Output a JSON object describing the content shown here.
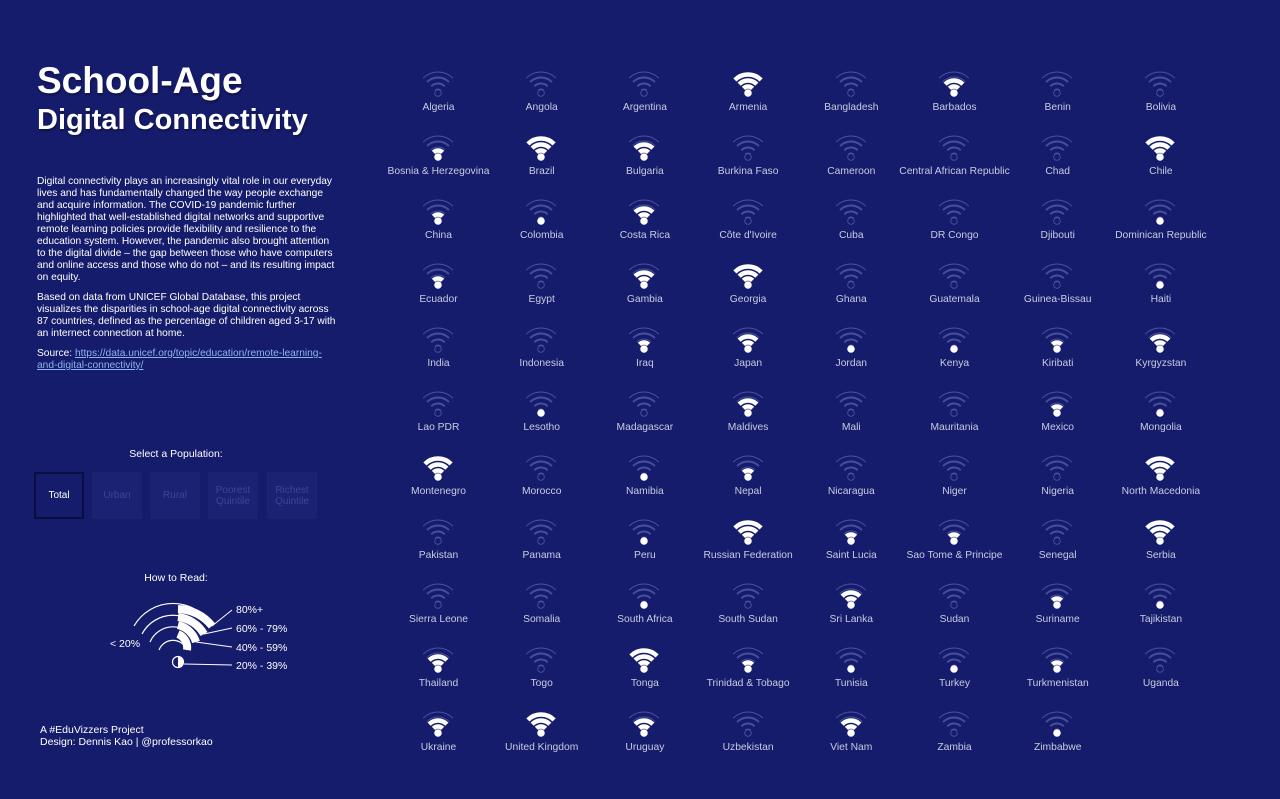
{
  "header": {
    "title_line1": "School-Age",
    "title_line2": "Digital Connectivity"
  },
  "intro": {
    "paragraph1": "Digital connectivity plays an increasingly vital role in our everyday lives and has fundamentally changed the way people exchange and acquire information. The COVID-19 pandemic further highlighted that well-established digital networks and supportive remote learning policies provide flexibility and resilience to the education system. However, the pandemic also brought attention to the digital divide – the gap between those who have computers and online access and those who do not – and its resulting impact on equity.",
    "paragraph2": "Based on data from UNICEF Global Database, this project visualizes the disparities in school-age digital connectivity across 87 countries, defined as the percentage of children aged 3-17 with an internect connection at home.",
    "source_label": "Source:",
    "source_link": "https://data.unicef.org/topic/education/remote-learning-and-digital-connectivity/"
  },
  "population": {
    "label": "Select a Population:",
    "options": [
      "Total",
      "Urban",
      "Rural",
      "Poorest Quintile",
      "Richest Quintile"
    ],
    "selected": "Total"
  },
  "how_to_read": {
    "label": "How to Read:",
    "levels": [
      "80%+",
      "60% - 79%",
      "40% - 59%",
      "20% - 39%"
    ],
    "below": "< 20%"
  },
  "credit": {
    "line1": "A #EduVizzers Project",
    "line2": "Design: Dennis Kao | @professorkao"
  },
  "colors": {
    "background": "#161c6c",
    "strong": "#ffffff",
    "faint": "#4a52a0"
  },
  "countries": [
    {
      "name": "Algeria",
      "level": 0
    },
    {
      "name": "Angola",
      "level": 0
    },
    {
      "name": "Argentina",
      "level": 0
    },
    {
      "name": "Armenia",
      "level": 4
    },
    {
      "name": "Bangladesh",
      "level": 0
    },
    {
      "name": "Barbados",
      "level": 3
    },
    {
      "name": "Benin",
      "level": 0
    },
    {
      "name": "Bolivia",
      "level": 0
    },
    {
      "name": "Bosnia & Herzegovina",
      "level": 2
    },
    {
      "name": "Brazil",
      "level": 4
    },
    {
      "name": "Bulgaria",
      "level": 3
    },
    {
      "name": "Burkina Faso",
      "level": 0
    },
    {
      "name": "Cameroon",
      "level": 0
    },
    {
      "name": "Central African Republic",
      "level": 0
    },
    {
      "name": "Chad",
      "level": 0
    },
    {
      "name": "Chile",
      "level": 4
    },
    {
      "name": "China",
      "level": 2
    },
    {
      "name": "Colombia",
      "level": 1
    },
    {
      "name": "Costa Rica",
      "level": 3
    },
    {
      "name": "Côte d'Ivoire",
      "level": 0
    },
    {
      "name": "Cuba",
      "level": 0
    },
    {
      "name": "DR Congo",
      "level": 0
    },
    {
      "name": "Djibouti",
      "level": 0
    },
    {
      "name": "Dominican Republic",
      "level": 1
    },
    {
      "name": "Ecuador",
      "level": 2
    },
    {
      "name": "Egypt",
      "level": 0
    },
    {
      "name": "Gambia",
      "level": 3
    },
    {
      "name": "Georgia",
      "level": 4
    },
    {
      "name": "Ghana",
      "level": 0
    },
    {
      "name": "Guatemala",
      "level": 0
    },
    {
      "name": "Guinea-Bissau",
      "level": 0
    },
    {
      "name": "Haiti",
      "level": 1
    },
    {
      "name": "India",
      "level": 0
    },
    {
      "name": "Indonesia",
      "level": 0
    },
    {
      "name": "Iraq",
      "level": 2
    },
    {
      "name": "Japan",
      "level": 3
    },
    {
      "name": "Jordan",
      "level": 1
    },
    {
      "name": "Kenya",
      "level": 1
    },
    {
      "name": "Kiribati",
      "level": 2
    },
    {
      "name": "Kyrgyzstan",
      "level": 3
    },
    {
      "name": "Lao PDR",
      "level": 0
    },
    {
      "name": "Lesotho",
      "level": 1
    },
    {
      "name": "Madagascar",
      "level": 0
    },
    {
      "name": "Maldives",
      "level": 3
    },
    {
      "name": "Mali",
      "level": 0
    },
    {
      "name": "Mauritania",
      "level": 0
    },
    {
      "name": "Mexico",
      "level": 2
    },
    {
      "name": "Mongolia",
      "level": 1
    },
    {
      "name": "Montenegro",
      "level": 4
    },
    {
      "name": "Morocco",
      "level": 0
    },
    {
      "name": "Namibia",
      "level": 1
    },
    {
      "name": "Nepal",
      "level": 2
    },
    {
      "name": "Nicaragua",
      "level": 0
    },
    {
      "name": "Niger",
      "level": 0
    },
    {
      "name": "Nigeria",
      "level": 0
    },
    {
      "name": "North Macedonia",
      "level": 4
    },
    {
      "name": "Pakistan",
      "level": 0
    },
    {
      "name": "Panama",
      "level": 0
    },
    {
      "name": "Peru",
      "level": 1
    },
    {
      "name": "Russian Federation",
      "level": 4
    },
    {
      "name": "Saint Lucia",
      "level": 2
    },
    {
      "name": "Sao Tome & Principe",
      "level": 2
    },
    {
      "name": "Senegal",
      "level": 0
    },
    {
      "name": "Serbia",
      "level": 4
    },
    {
      "name": "Sierra Leone",
      "level": 0
    },
    {
      "name": "Somalia",
      "level": 0
    },
    {
      "name": "South Africa",
      "level": 1
    },
    {
      "name": "South Sudan",
      "level": 0
    },
    {
      "name": "Sri Lanka",
      "level": 3
    },
    {
      "name": "Sudan",
      "level": 0
    },
    {
      "name": "Suriname",
      "level": 2
    },
    {
      "name": "Tajikistan",
      "level": 1
    },
    {
      "name": "Thailand",
      "level": 3
    },
    {
      "name": "Togo",
      "level": 0
    },
    {
      "name": "Tonga",
      "level": 4
    },
    {
      "name": "Trinidad & Tobago",
      "level": 2
    },
    {
      "name": "Tunisia",
      "level": 1
    },
    {
      "name": "Turkey",
      "level": 1
    },
    {
      "name": "Turkmenistan",
      "level": 2
    },
    {
      "name": "Uganda",
      "level": 0
    },
    {
      "name": "Ukraine",
      "level": 3
    },
    {
      "name": "United Kingdom",
      "level": 4
    },
    {
      "name": "Uruguay",
      "level": 3
    },
    {
      "name": "Uzbekistan",
      "level": 0
    },
    {
      "name": "Viet Nam",
      "level": 3
    },
    {
      "name": "Zambia",
      "level": 0
    },
    {
      "name": "Zimbabwe",
      "level": 1
    }
  ]
}
